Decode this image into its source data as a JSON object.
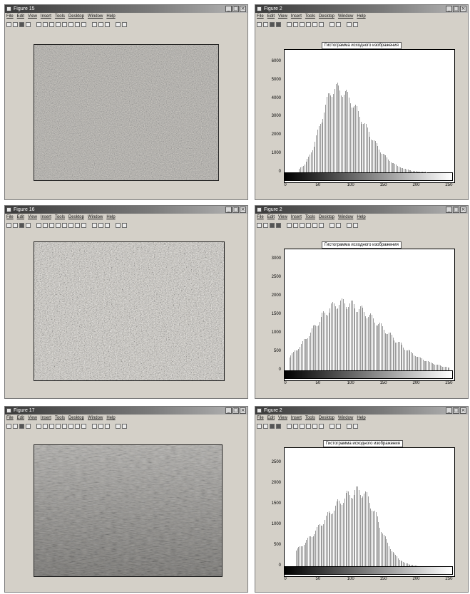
{
  "rows": [
    {
      "image_window": {
        "title": "Figure 15",
        "menus": [
          "File",
          "Edit",
          "View",
          "Insert",
          "Tools",
          "Desktop",
          "Window",
          "Help"
        ],
        "photo": "dark grass texture"
      },
      "hist_window": {
        "title": "Figure 2",
        "menus": [
          "File",
          "Edit",
          "View",
          "Insert",
          "Tools",
          "Desktop",
          "Window",
          "Help"
        ],
        "title_text": "Гистограмма исходного изображения",
        "y_ticks": [
          "6000",
          "5000",
          "4000",
          "3000",
          "2000",
          "1000",
          "0"
        ],
        "x_ticks": [
          "0",
          "50",
          "100",
          "150",
          "200",
          "250"
        ],
        "chart_data": {
          "type": "bar",
          "xlim": [
            0,
            255
          ],
          "ylim": [
            0,
            6500
          ],
          "peak_x": 75,
          "peak_y": 4900,
          "spread_left": 22,
          "spread_right": 42,
          "start_x": 20,
          "end_x": 215
        }
      }
    },
    {
      "image_window": {
        "title": "Figure 16",
        "menus": [
          "File",
          "Edit",
          "View",
          "Insert",
          "Tools",
          "Desktop",
          "Window",
          "Help"
        ],
        "photo": "bright grass texture"
      },
      "hist_window": {
        "title": "Figure 2",
        "menus": [
          "File",
          "Edit",
          "View",
          "Insert",
          "Tools",
          "Desktop",
          "Window",
          "Help"
        ],
        "title_text": "Гистограмма исходного изображения",
        "y_ticks": [
          "3000",
          "2500",
          "2000",
          "1500",
          "1000",
          "500",
          "0"
        ],
        "x_ticks": [
          "0",
          "50",
          "100",
          "150",
          "200",
          "250"
        ],
        "chart_data": {
          "type": "bar",
          "xlim": [
            0,
            255
          ],
          "ylim": [
            0,
            3200
          ],
          "peak_x": 85,
          "peak_y": 1950,
          "spread_left": 45,
          "spread_right": 65,
          "start_x": 5,
          "end_x": 250
        }
      }
    },
    {
      "image_window": {
        "title": "Figure 17",
        "menus": [
          "File",
          "Edit",
          "View",
          "Insert",
          "Tools",
          "Desktop",
          "Window",
          "Help"
        ],
        "photo": "grass field photo"
      },
      "hist_window": {
        "title": "Figure 2",
        "menus": [
          "File",
          "Edit",
          "View",
          "Insert",
          "Tools",
          "Desktop",
          "Window",
          "Help"
        ],
        "title_text": "Гистограмма исходного изображения",
        "y_ticks": [
          "2500",
          "2000",
          "1500",
          "1000",
          "500",
          "0"
        ],
        "x_ticks": [
          "0",
          "50",
          "100",
          "150",
          "200",
          "250"
        ],
        "chart_data": {
          "type": "bar",
          "xlim": [
            0,
            255
          ],
          "ylim": [
            0,
            2800
          ],
          "peak_x": 112,
          "peak_y": 1950,
          "spread_left": 55,
          "spread_right": 28,
          "start_x": 15,
          "end_x": 200
        }
      }
    }
  ]
}
